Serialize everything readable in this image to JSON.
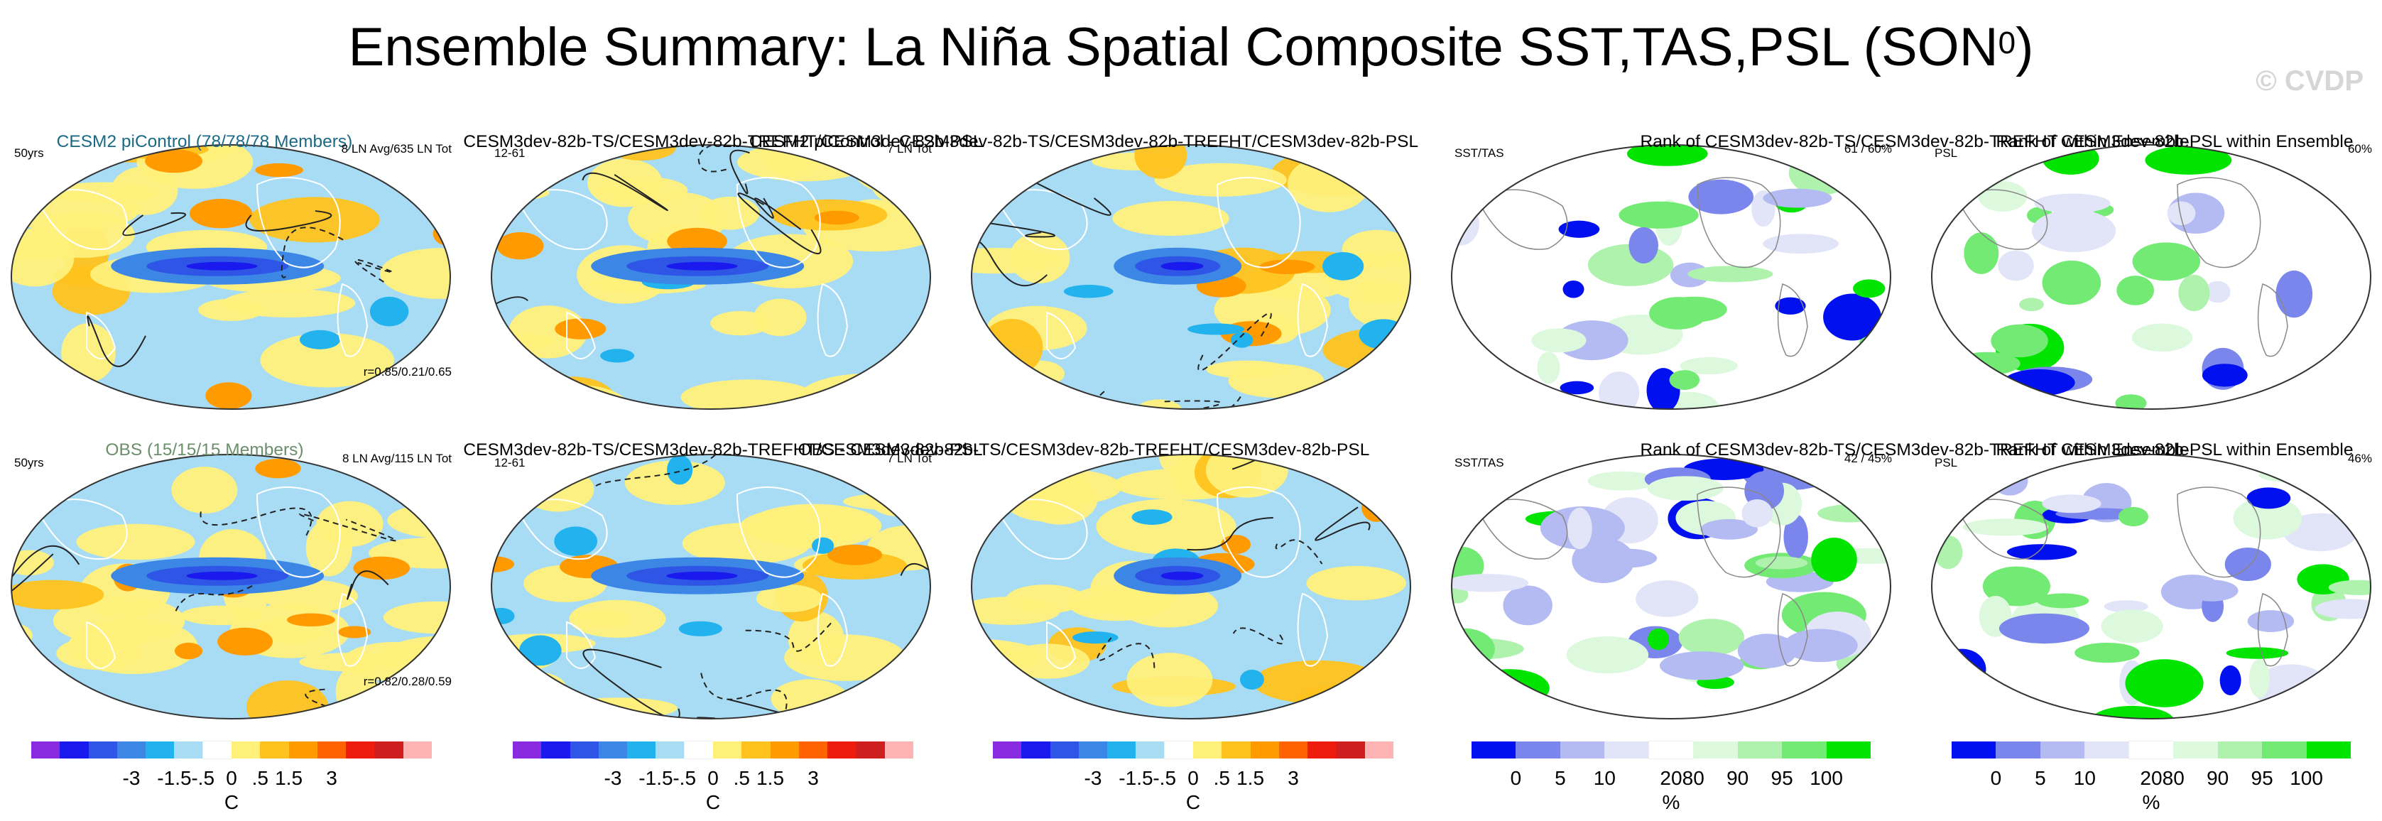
{
  "title": {
    "main": "Ensemble Summary: La Niña Spatial Composite SST,TAS,PSL (SON",
    "superscript": "0",
    "close": ")"
  },
  "watermark": "© CVDP",
  "panels": [
    {
      "title": "CESM2 piControl (78/78/78 Members)",
      "left": "50yrs",
      "right": "8 LN Avg/635 LN Tot",
      "bottom": "r=0.85/0.21/0.65",
      "type": "diverging"
    },
    {
      "title": "CESM3dev-82b-TS/CESM3dev-82b-TREFHT/CESM3dev-82b-PSL",
      "left": "12-61",
      "right": "7 LN Tot",
      "bottom": "",
      "type": "diverging"
    },
    {
      "title": "CESM2 piControl - CESM3dev-82b-TS/CESM3dev-82b-TREFHT/CESM3dev-82b-PSL",
      "left": "",
      "right": "",
      "bottom": "",
      "type": "diverging"
    },
    {
      "title": "Rank of CESM3dev-82b-TS/CESM3dev-82b-TREFHT within Ensemble",
      "left": "SST/TAS",
      "right": "61 /  60%",
      "bottom": "",
      "type": "rank"
    },
    {
      "title": "Rank of CESM3dev-82b-PSL within Ensemble",
      "left": "PSL",
      "right": "60%",
      "bottom": "",
      "type": "rank"
    },
    {
      "title": "OBS (15/15/15 Members)",
      "left": "50yrs",
      "right": "8 LN Avg/115 LN Tot",
      "bottom": "r=0.82/0.28/0.59",
      "type": "diverging"
    },
    {
      "title": "CESM3dev-82b-TS/CESM3dev-82b-TREFHT/CESM3dev-82b-PSL",
      "left": "12-61",
      "right": "7 LN Tot",
      "bottom": "",
      "type": "diverging"
    },
    {
      "title": "OBS - CESM3dev-82b-TS/CESM3dev-82b-TREFHT/CESM3dev-82b-PSL",
      "left": "",
      "right": "",
      "bottom": "",
      "type": "diverging"
    },
    {
      "title": "Rank of CESM3dev-82b-TS/CESM3dev-82b-TREFHT within Ensemble",
      "left": "SST/TAS",
      "right": "42 /  45%",
      "bottom": "",
      "type": "rank"
    },
    {
      "title": "Rank of CESM3dev-82b-PSL within Ensemble",
      "left": "PSL",
      "right": "46%",
      "bottom": "",
      "type": "rank"
    }
  ],
  "colors": {
    "diverging": [
      "#8a2be2",
      "#1a1aee",
      "#2f55e6",
      "#3c86e6",
      "#22b3ee",
      "#a8dcf5",
      "#ffffff",
      "#fff07a",
      "#ffc21e",
      "#ff9a00",
      "#ff6200",
      "#ee1c0c",
      "#cf1e1e",
      "#ffb3b3"
    ],
    "rank": [
      "#0010ee",
      "#7b86ec",
      "#b4baf2",
      "#e2e5f8",
      "#ffffff",
      "#ddf9dd",
      "#aef2ae",
      "#73ea73",
      "#00e400"
    ]
  },
  "colorbars": {
    "diverging": {
      "ticks": [
        "-3",
        "-1.5",
        "-.5",
        "0",
        ".5",
        "1.5",
        "3"
      ],
      "unit": "C"
    },
    "rank": {
      "ticks": [
        "0",
        "5",
        "10",
        "20",
        "80",
        "90",
        "95",
        "100"
      ],
      "unit": "%"
    }
  },
  "chart_data": {
    "type": "heatmap",
    "title": "Ensemble Summary: La Niña Spatial Composite SST,TAS,PSL (SON0)",
    "layout": "2 rows x 5 panels (global map projections)",
    "diverging_scale": {
      "unit": "C",
      "levels": [
        -3,
        -2,
        -1.5,
        -1,
        -0.5,
        -0.25,
        0,
        0.25,
        0.5,
        1,
        1.5,
        2,
        3
      ]
    },
    "rank_scale": {
      "unit": "%",
      "levels": [
        0,
        5,
        10,
        20,
        80,
        90,
        95,
        100
      ]
    }
  }
}
